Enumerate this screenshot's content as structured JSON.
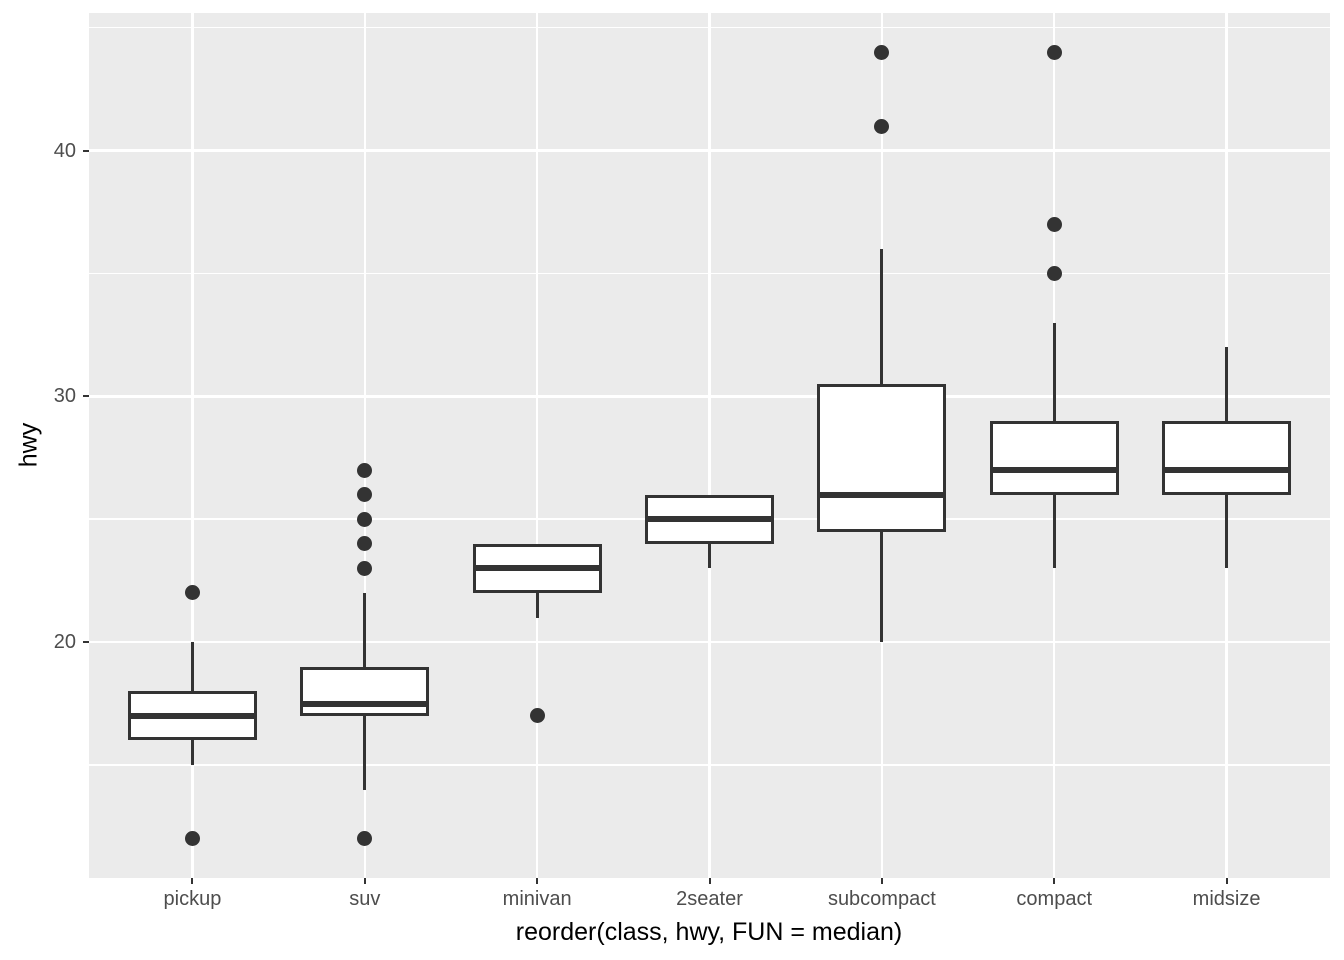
{
  "chart_data": {
    "type": "boxplot",
    "title": "",
    "xlabel": "reorder(class, hwy, FUN = median)",
    "ylabel": "hwy",
    "categories": [
      "pickup",
      "suv",
      "minivan",
      "2seater",
      "subcompact",
      "compact",
      "midsize"
    ],
    "series": [
      {
        "name": "pickup",
        "whisker_low": 15,
        "q1": 16,
        "median": 17,
        "q3": 18,
        "whisker_high": 20,
        "outliers": [
          12,
          22
        ]
      },
      {
        "name": "suv",
        "whisker_low": 14,
        "q1": 17,
        "median": 17.5,
        "q3": 19,
        "whisker_high": 22,
        "outliers": [
          12,
          23,
          24,
          25,
          26,
          27
        ]
      },
      {
        "name": "minivan",
        "whisker_low": 21,
        "q1": 22,
        "median": 23,
        "q3": 24,
        "whisker_high": 24,
        "outliers": [
          17
        ]
      },
      {
        "name": "2seater",
        "whisker_low": 23,
        "q1": 24,
        "median": 25,
        "q3": 26,
        "whisker_high": 26,
        "outliers": []
      },
      {
        "name": "subcompact",
        "whisker_low": 20,
        "q1": 24.5,
        "median": 26,
        "q3": 30.5,
        "whisker_high": 36,
        "outliers": [
          41,
          44
        ]
      },
      {
        "name": "compact",
        "whisker_low": 23,
        "q1": 26,
        "median": 27,
        "q3": 29,
        "whisker_high": 33,
        "outliers": [
          35,
          37,
          44
        ]
      },
      {
        "name": "midsize",
        "whisker_low": 23,
        "q1": 26,
        "median": 27,
        "q3": 29,
        "whisker_high": 32,
        "outliers": []
      }
    ],
    "y_axis": {
      "major_ticks": [
        20,
        30,
        40
      ],
      "minor_gridlines": [
        15,
        25,
        35,
        45
      ],
      "ylim": [
        10.4,
        45.6
      ]
    },
    "grid": "major-and-minor, white on gray panel",
    "legend": "none"
  },
  "style": {
    "panel_background": "#EBEBEB",
    "grid_color": "#FFFFFF",
    "box_fill": "#FFFFFF",
    "stroke_color": "#333333",
    "tick_label_color": "#4D4D4D",
    "axis_title_color": "#000000"
  }
}
